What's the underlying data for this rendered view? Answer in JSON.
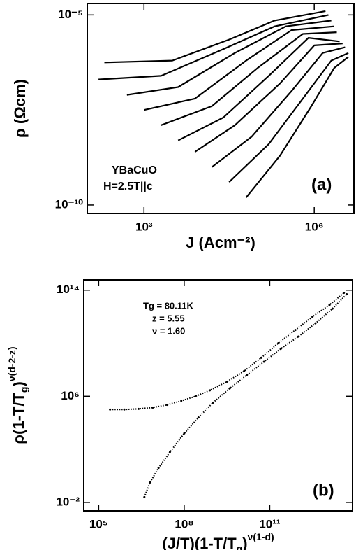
{
  "chart_data": [
    {
      "type": "line",
      "xscale": "log",
      "yscale": "log",
      "xlabel": "J (Acm⁻²)",
      "ylabel": "ρ (Ωcm)",
      "annotations": [
        "YBaCuO",
        "H=2.5T||c",
        "(a)"
      ],
      "xlim": [
        100,
        5000000
      ],
      "ylim": [
        6e-11,
        2e-05
      ],
      "xticks": [
        {
          "value": 1000,
          "label": "10³"
        },
        {
          "value": 1000000,
          "label": "10⁶"
        }
      ],
      "yticks": [
        {
          "value": 1e-10,
          "label": "10⁻¹⁰"
        },
        {
          "value": 1e-05,
          "label": "10⁻⁵"
        }
      ],
      "series": [
        {
          "color": "#000000",
          "x": [
            200,
            3160,
            31600,
            200000,
            1580000
          ],
          "values": [
            5.6e-07,
            6.3e-07,
            2.24e-06,
            7.1e-06,
            1.26e-05
          ]
        },
        {
          "color": "#000000",
          "x": [
            158,
            2000,
            25000,
            200000,
            1780000
          ],
          "values": [
            2e-07,
            2.5e-07,
            1.26e-06,
            5e-06,
            1e-05
          ]
        },
        {
          "color": "#000000",
          "x": [
            500,
            4000,
            40000,
            316000,
            2000000
          ],
          "values": [
            7.9e-08,
            1.26e-07,
            1e-06,
            5e-06,
            7.1e-06
          ]
        },
        {
          "color": "#000000",
          "x": [
            1000,
            7900,
            63000,
            400000,
            2240000
          ],
          "values": [
            3.16e-08,
            6.3e-08,
            6.3e-07,
            4e-06,
            5e-06
          ]
        },
        {
          "color": "#000000",
          "x": [
            2000,
            15800,
            100000,
            630000,
            2500000
          ],
          "values": [
            1.26e-08,
            4e-08,
            4e-07,
            3.16e-06,
            3.5e-06
          ]
        },
        {
          "color": "#000000",
          "x": [
            4000,
            25000,
            158000,
            790000,
            2800000
          ],
          "values": [
            5e-09,
            2e-08,
            2.5e-07,
            2.5e-06,
            2e-06
          ]
        },
        {
          "color": "#000000",
          "x": [
            7900,
            40000,
            250000,
            1000000,
            3160000
          ],
          "values": [
            2.5e-09,
            1.26e-08,
            1.58e-07,
            1.58e-06,
            1.78e-06
          ]
        },
        {
          "color": "#000000",
          "x": [
            15800,
            79000,
            400000,
            1410000,
            3500000
          ],
          "values": [
            1e-09,
            6.3e-09,
            1e-07,
            1e-06,
            1.41e-06
          ]
        },
        {
          "color": "#000000",
          "x": [
            31600,
            158000,
            630000,
            2000000,
            4000000
          ],
          "values": [
            4e-10,
            4e-09,
            6.3e-08,
            6.3e-07,
            1e-06
          ]
        },
        {
          "color": "#000000",
          "x": [
            63000,
            250000,
            890000,
            2240000,
            4000000
          ],
          "values": [
            1.58e-10,
            2e-09,
            4e-08,
            4e-07,
            7.9e-07
          ]
        }
      ]
    },
    {
      "type": "scatter",
      "xscale": "log",
      "yscale": "log",
      "xlabel": {
        "parts": [
          "(J/T)(1-T/T",
          "g",
          ")",
          "ν(1-d)"
        ],
        "styles": [
          "base",
          "sub",
          "base",
          "super"
        ]
      },
      "ylabel": {
        "parts": [
          "ρ(1-T/T",
          "g",
          ")",
          "ν(d-2-z)"
        ],
        "styles": [
          "base",
          "sub",
          "base",
          "super"
        ]
      },
      "annotations": [
        "Tg = 80.11K",
        "z = 5.55",
        "ν = 1.60",
        "(b)"
      ],
      "xlim": [
        30000,
        80000000000000
      ],
      "ylim": [
        0.0023,
        600000000000000
      ],
      "xticks": [
        {
          "value": 100000,
          "label": "10⁵"
        },
        {
          "value": 100000000,
          "label": "10⁸"
        },
        {
          "value": 100000000000,
          "label": "10¹¹"
        }
      ],
      "yticks": [
        {
          "value": 0.01,
          "label": "10⁻²"
        },
        {
          "value": 1000000,
          "label": "10⁶"
        },
        {
          "value": 100000000000000,
          "label": "10¹⁴"
        }
      ],
      "series": [
        {
          "color": "#000000",
          "x": [
            250000,
            790000,
            2500000,
            7900000,
            25000000,
            79000000,
            250000000,
            790000000,
            3160000000,
            12600000000,
            50000000000,
            200000000000,
            790000000000,
            3160000000000,
            12600000000000,
            40000000000000
          ],
          "values": [
            100000,
            100000,
            112000,
            141000,
            224000,
            450000,
            1000000,
            2800000,
            12600000,
            79000000,
            790000000,
            10000000000,
            100000000000,
            1000000000000,
            7900000000000,
            63000000000000
          ]
        },
        {
          "color": "#000000",
          "x": [
            4000000,
            6300000,
            12600000,
            31600000,
            100000000,
            316000000,
            1000000000,
            4000000000,
            15800000000,
            63000000000,
            250000000000,
            1000000000000,
            4000000000000,
            15800000000000,
            50000000000000
          ],
          "values": [
            0.025,
            0.316,
            4,
            63,
            1580,
            25000,
            316000,
            4000000,
            40000000,
            400000000,
            4000000000,
            31600000000,
            316000000000,
            4000000000000,
            50000000000000
          ]
        }
      ]
    }
  ]
}
